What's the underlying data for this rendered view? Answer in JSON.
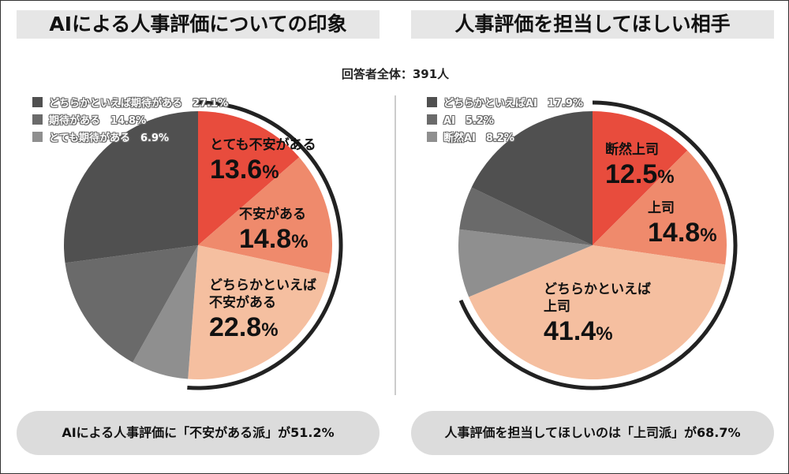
{
  "total_label": "回答者全体：391人",
  "colors": {
    "red": "#e84c3d",
    "salmon": "#ef8a6c",
    "peach": "#f5bfa0",
    "gray_light": "#8f8f8f",
    "gray_mid": "#6a6a6a",
    "gray_dark": "#505050",
    "arc": "#222222"
  },
  "chart_data": [
    {
      "type": "pie",
      "title": "AIによる人事評価についての印象",
      "slices": [
        {
          "label": "とても不安がある",
          "value": 13.6,
          "display": "13.6",
          "color": "#e84c3d"
        },
        {
          "label": "不安がある",
          "value": 14.8,
          "display": "14.8",
          "color": "#ef8a6c"
        },
        {
          "label": "どちらかといえば不安がある",
          "value": 22.8,
          "display": "22.8",
          "color": "#f5bfa0"
        },
        {
          "label": "とても期待がある",
          "value": 6.9,
          "display": "6.9",
          "color": "#8f8f8f"
        },
        {
          "label": "期待がある",
          "value": 14.8,
          "display": "14.8",
          "color": "#6a6a6a"
        },
        {
          "label": "どちらかといえば期待がある",
          "value": 27.1,
          "display": "27.1",
          "color": "#505050"
        }
      ],
      "legend": [
        "どちらかといえば期待がある　27.1%",
        "期待がある　14.8%",
        "とても期待がある　6.9%"
      ],
      "highlight_total": 51.2,
      "summary": "AIによる人事評価に「不安がある派」が51.2%"
    },
    {
      "type": "pie",
      "title": "人事評価を担当してほしい相手",
      "slices": [
        {
          "label": "断然上司",
          "value": 12.5,
          "display": "12.5",
          "color": "#e84c3d"
        },
        {
          "label": "上司",
          "value": 14.8,
          "display": "14.8",
          "color": "#ef8a6c"
        },
        {
          "label": "どちらかといえば上司",
          "value": 41.4,
          "display": "41.4",
          "color": "#f5bfa0"
        },
        {
          "label": "断然AI",
          "value": 8.2,
          "display": "8.2",
          "color": "#8f8f8f"
        },
        {
          "label": "AI",
          "value": 5.2,
          "display": "5.2",
          "color": "#6a6a6a"
        },
        {
          "label": "どちらかといえばAI",
          "value": 17.9,
          "display": "17.9",
          "color": "#505050"
        }
      ],
      "legend": [
        "どちらかといえばAI　17.9%",
        "AI　5.2%",
        "断然AI　8.2%"
      ],
      "highlight_total": 68.7,
      "summary": "人事評価を担当してほしいのは「上司派」が68.7%"
    }
  ],
  "labels": {
    "l0a": "とても不安がある",
    "l0b": "不安がある",
    "l0c1": "どちらかといえば",
    "l0c2": "不安がある",
    "r0a": "断然上司",
    "r0b": "上司",
    "r0c1": "どちらかといえば",
    "r0c2": "上司",
    "pct": "%"
  }
}
